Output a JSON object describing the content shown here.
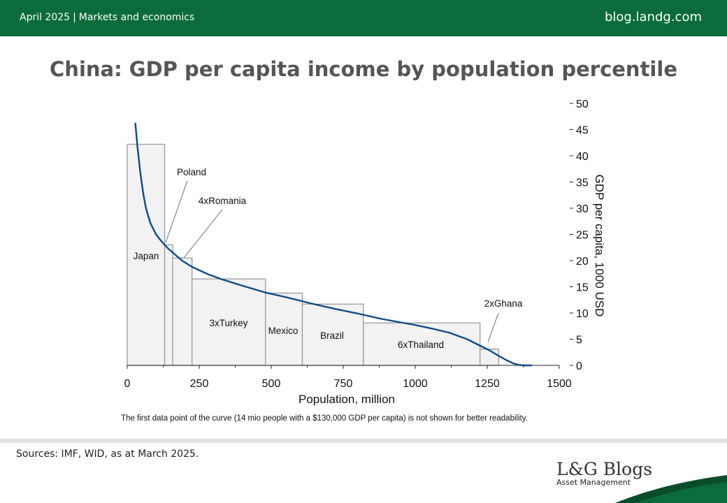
{
  "header": {
    "date": "April 2025",
    "category": "Markets and economics",
    "site": "blog.landg.com"
  },
  "title": "China: GDP per capita income by population percentile",
  "footnote": "The first data point of the curve (14 mio people with a $130,000 GDP per capita) is not shown for better readability.",
  "sources": "Sources: IMF, WID, as at March 2025.",
  "logo": {
    "main": "L&G Blogs",
    "sub": "Asset Management"
  },
  "colors": {
    "brand_green": "#0b6b3a",
    "curve": "#0d4a86",
    "bar_fill": "#f2f2f2",
    "bar_stroke": "#9a9a9a"
  },
  "chart_data": {
    "type": "area",
    "xlabel": "Population, million",
    "ylabel": "GDP per capita, 1000 USD",
    "xlim": [
      0,
      1500
    ],
    "ylim": [
      0,
      50
    ],
    "x_ticks": [
      "0",
      "250",
      "500",
      "750",
      "1000",
      "1250",
      "1500"
    ],
    "y_ticks": [
      "0",
      "5",
      "10",
      "15",
      "20",
      "25",
      "30",
      "35",
      "40",
      "45",
      "50"
    ],
    "y_axis_position": "right",
    "countries": [
      {
        "label": "Japan",
        "x0": 0,
        "x1": 130,
        "value": 42.2
      },
      {
        "label": "Poland",
        "x0": 130,
        "x1": 158,
        "value": 23.0
      },
      {
        "label": "4xRomania",
        "x0": 158,
        "x1": 225,
        "value": 20.5
      },
      {
        "label": "3xTurkey",
        "x0": 225,
        "x1": 480,
        "value": 16.5
      },
      {
        "label": "Mexico",
        "x0": 480,
        "x1": 608,
        "value": 13.8
      },
      {
        "label": "Brazil",
        "x0": 608,
        "x1": 820,
        "value": 11.7
      },
      {
        "label": "6xThailand",
        "x0": 820,
        "x1": 1225,
        "value": 8.1
      },
      {
        "label": "2xGhana",
        "x0": 1225,
        "x1": 1290,
        "value": 3.1
      }
    ],
    "curve": {
      "name": "China",
      "x": [
        28,
        35,
        45,
        55,
        65,
        80,
        100,
        120,
        140,
        165,
        190,
        225,
        280,
        330,
        400,
        480,
        560,
        640,
        720,
        800,
        880,
        950,
        1000,
        1060,
        1120,
        1180,
        1220,
        1260,
        1290,
        1320,
        1345,
        1360,
        1375,
        1405
      ],
      "y": [
        46.3,
        42.0,
        37.0,
        33.0,
        30.0,
        27.2,
        25.0,
        23.6,
        22.4,
        21.2,
        20.0,
        18.8,
        17.4,
        16.4,
        15.2,
        13.9,
        12.9,
        11.8,
        10.8,
        9.9,
        8.9,
        8.2,
        7.7,
        7.0,
        6.2,
        5.0,
        3.9,
        2.8,
        1.8,
        0.9,
        0.3,
        0.08,
        0.0,
        0.0
      ]
    }
  }
}
